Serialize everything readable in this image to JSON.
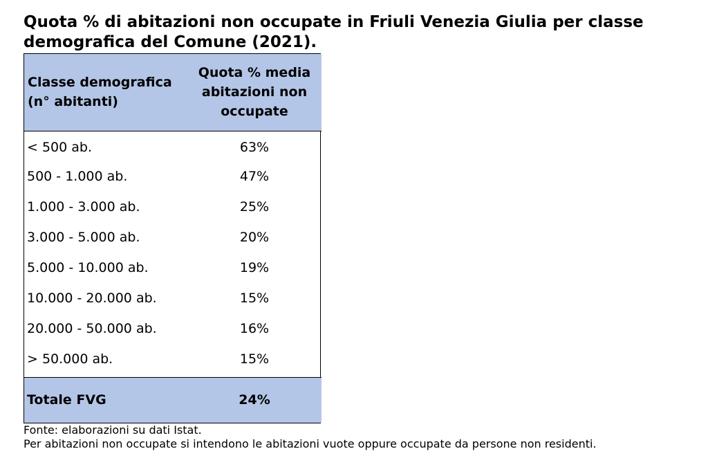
{
  "title": "Quota % di abitazioni non occupate in Friuli Venezia Giulia per classe demografica del Comune (2021).",
  "chart_data": {
    "type": "table",
    "columns": [
      [
        "Classe demografica",
        "(n° abitanti)"
      ],
      [
        "Quota % media",
        "abitazioni non",
        "occupate"
      ]
    ],
    "rows": [
      {
        "classe": "< 500 ab.",
        "quota": "63%"
      },
      {
        "classe": "500 - 1.000 ab.",
        "quota": "47%"
      },
      {
        "classe": "1.000 - 3.000 ab.",
        "quota": "25%"
      },
      {
        "classe": "3.000 - 5.000 ab.",
        "quota": "20%"
      },
      {
        "classe": "5.000 - 10.000 ab.",
        "quota": "19%"
      },
      {
        "classe": "10.000 - 20.000 ab.",
        "quota": "15%"
      },
      {
        "classe": "20.000 - 50.000 ab.",
        "quota": "16%"
      },
      {
        "classe": "> 50.000 ab.",
        "quota": "15%"
      }
    ],
    "total": {
      "classe": "Totale FVG",
      "quota": "24%"
    }
  },
  "notes": {
    "source": "Fonte: elaborazioni su dati Istat.",
    "definition": "Per abitazioni non occupate si intendono le abitazioni vuote oppure occupate da persone non residenti."
  },
  "colors": {
    "header_fill": "#b4c6e7",
    "border": "#000000"
  }
}
